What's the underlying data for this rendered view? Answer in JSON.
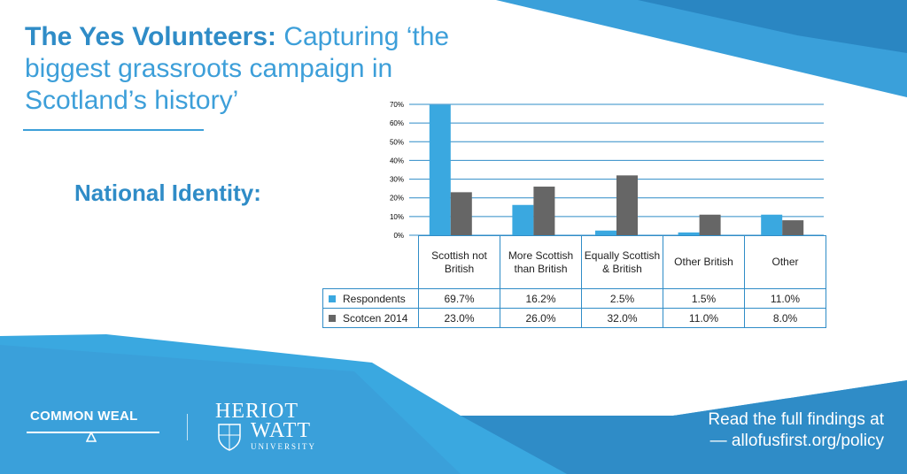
{
  "title": {
    "strong": "The Yes Volunteers:",
    "rest": " Capturing ‘the biggest grassroots campaign in Scotland’s history’"
  },
  "section_heading": "National Identity:",
  "colors": {
    "brand_blue": "#3d9fd9",
    "respondents": "#3aa8e0",
    "scotcen": "#666666",
    "grid": "#2f8cc7"
  },
  "chart_data": {
    "type": "bar",
    "categories": [
      "Scottish not British",
      "More Scottish than British",
      "Equally Scottish & British",
      "Other British",
      "Other"
    ],
    "series": [
      {
        "name": "Respondents",
        "values": [
          69.7,
          16.2,
          2.5,
          1.5,
          11.0
        ]
      },
      {
        "name": "Scotcen 2014",
        "values": [
          23.0,
          26.0,
          32.0,
          11.0,
          8.0
        ]
      }
    ],
    "yticks": [
      "0%",
      "10%",
      "20%",
      "30%",
      "40%",
      "50%",
      "60%",
      "70%"
    ],
    "ylim": [
      0,
      70
    ],
    "grid": true,
    "legend": "in data table",
    "title": "",
    "xlabel": "",
    "ylabel": ""
  },
  "table": {
    "headers": [
      "Scottish not British",
      "More Scottish than British",
      "Equally Scottish & British",
      "Other British",
      "Other"
    ],
    "rows": [
      {
        "label": "Respondents",
        "values": [
          "69.7%",
          "16.2%",
          "2.5%",
          "1.5%",
          "11.0%"
        ]
      },
      {
        "label": "Scotcen 2014",
        "values": [
          "23.0%",
          "26.0%",
          "32.0%",
          "11.0%",
          "8.0%"
        ]
      }
    ]
  },
  "footer": {
    "logo_common_weal": "COMMON WEAL",
    "logo_hw_line1": "HERIOT",
    "logo_hw_line2": "WATT",
    "logo_hw_line3": "UNIVERSITY",
    "cta_line1": "Read the full findings at",
    "cta_line2": "— allofusfirst.org/policy"
  }
}
